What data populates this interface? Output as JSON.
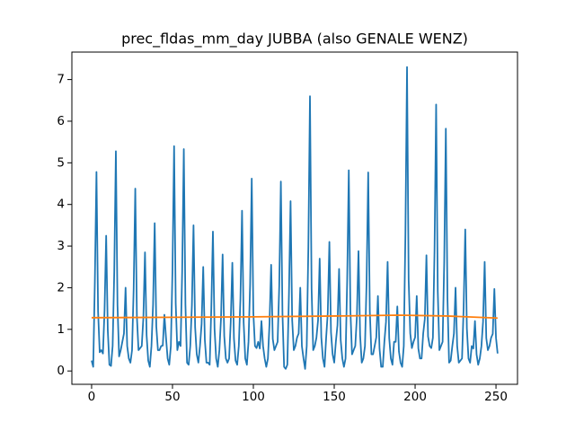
{
  "chart_data": {
    "type": "line",
    "title": "prec_fldas_mm_day JUBBA (also GENALE WENZ)",
    "xlim": [
      -12.2,
      263.3
    ],
    "xticks": [
      0,
      50,
      100,
      150,
      200,
      250
    ],
    "ylim": [
      -0.32,
      7.66
    ],
    "yticks": [
      0,
      1,
      2,
      3,
      4,
      5,
      6,
      7
    ],
    "series": [
      {
        "color": "#1f77b4",
        "values": [
          0.25,
          0.1,
          2.15,
          4.78,
          1.43,
          0.45,
          0.5,
          0.42,
          1.46,
          3.25,
          0.98,
          0.15,
          0.12,
          0.6,
          2.38,
          5.28,
          1.58,
          0.35,
          0.5,
          0.7,
          0.9,
          2.0,
          0.6,
          0.3,
          0.2,
          0.5,
          1.97,
          4.38,
          1.31,
          0.5,
          0.55,
          0.6,
          1.28,
          2.85,
          0.86,
          0.25,
          0.1,
          0.6,
          1.6,
          3.55,
          1.07,
          0.5,
          0.5,
          0.6,
          0.61,
          1.35,
          0.8,
          0.3,
          0.15,
          0.6,
          2.43,
          5.4,
          1.62,
          0.5,
          0.7,
          0.6,
          2.4,
          5.33,
          1.6,
          0.2,
          0.15,
          0.6,
          1.58,
          3.5,
          1.05,
          0.4,
          0.2,
          0.6,
          1.13,
          2.5,
          0.75,
          0.2,
          0.2,
          0.15,
          1.51,
          3.35,
          1.01,
          0.3,
          0.1,
          0.5,
          1.26,
          2.8,
          0.84,
          0.3,
          0.2,
          0.3,
          1.17,
          2.6,
          0.78,
          0.25,
          0.15,
          0.6,
          1.73,
          3.85,
          1.16,
          0.3,
          0.15,
          0.7,
          2.08,
          4.62,
          1.39,
          0.6,
          0.55,
          0.7,
          0.54,
          1.2,
          0.6,
          0.3,
          0.1,
          0.3,
          1.15,
          2.55,
          0.77,
          0.5,
          0.6,
          0.7,
          2.05,
          4.55,
          1.37,
          0.1,
          0.05,
          0.15,
          1.84,
          4.08,
          1.22,
          0.5,
          0.6,
          0.8,
          0.9,
          2.0,
          0.6,
          0.3,
          0.05,
          0.6,
          2.97,
          6.6,
          1.98,
          0.5,
          0.6,
          0.8,
          1.22,
          2.7,
          0.81,
          0.3,
          0.1,
          0.8,
          1.4,
          3.1,
          0.93,
          0.4,
          0.2,
          0.7,
          1.1,
          2.45,
          0.74,
          0.3,
          0.1,
          0.3,
          2.17,
          4.82,
          1.45,
          0.4,
          0.5,
          0.6,
          1.3,
          2.88,
          0.86,
          0.2,
          0.3,
          0.6,
          2.15,
          4.77,
          1.43,
          0.4,
          0.4,
          0.6,
          0.81,
          1.8,
          0.54,
          0.1,
          0.1,
          0.7,
          1.18,
          2.62,
          0.79,
          0.3,
          0.15,
          0.7,
          0.7,
          1.55,
          0.47,
          0.2,
          0.1,
          0.6,
          3.29,
          7.3,
          2.19,
          0.9,
          0.55,
          0.7,
          0.81,
          1.8,
          0.54,
          0.3,
          0.3,
          0.9,
          1.25,
          2.78,
          0.83,
          0.6,
          0.55,
          0.8,
          2.88,
          6.4,
          1.92,
          0.5,
          0.6,
          0.7,
          2.62,
          5.82,
          1.75,
          0.2,
          0.25,
          0.6,
          0.9,
          2.0,
          0.6,
          0.2,
          0.25,
          0.3,
          1.53,
          3.4,
          1.02,
          0.3,
          0.2,
          0.6,
          0.54,
          1.2,
          0.4,
          0.15,
          0.3,
          0.6,
          1.18,
          2.62,
          0.79,
          0.5,
          0.6,
          0.8,
          0.89,
          1.97,
          0.8,
          0.42
        ]
      },
      {
        "color": "#ff7f0e",
        "x": [
          0,
          50,
          100,
          150,
          190,
          220,
          251
        ],
        "values": [
          1.28,
          1.29,
          1.3,
          1.32,
          1.34,
          1.32,
          1.27
        ]
      }
    ]
  }
}
